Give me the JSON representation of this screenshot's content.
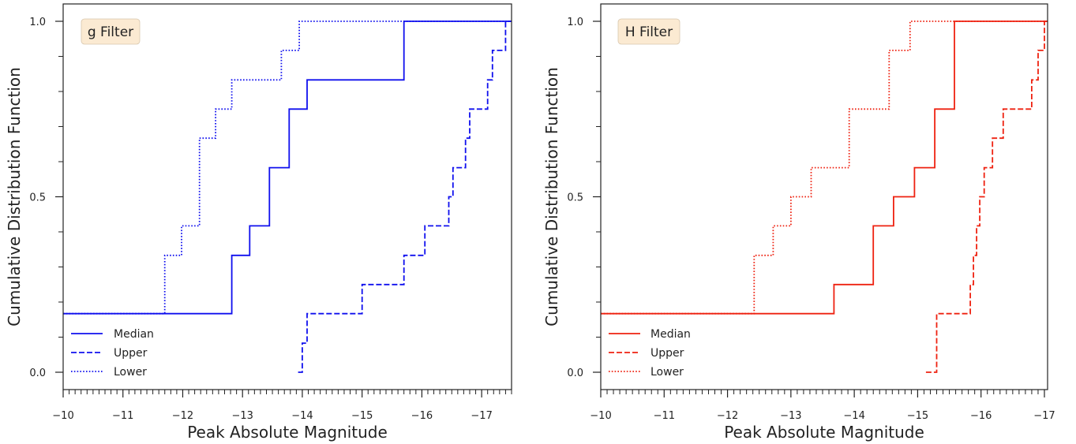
{
  "chart_data": [
    {
      "type": "line",
      "step": "post",
      "annotation": "g Filter",
      "xlabel": "Peak Absolute Magnitude",
      "ylabel": "Cumulative Distribution Function",
      "xlim": [
        -10,
        -17.5
      ],
      "ylim": [
        0,
        1
      ],
      "x_ticks": [
        -10,
        -11,
        -12,
        -13,
        -14,
        -15,
        -16,
        -17
      ],
      "x_tick_labels": [
        "−10",
        "−11",
        "−12",
        "−13",
        "−14",
        "−15",
        "−16",
        "−17"
      ],
      "y_ticks": [
        0.0,
        0.5,
        1.0
      ],
      "y_tick_labels": [
        "0.0",
        "0.5",
        "1.0"
      ],
      "grid": false,
      "legend_position": "bottom-left",
      "colors": {
        "series": "#1010ee",
        "annotation_bg": "#fbead2"
      },
      "series": [
        {
          "name": "Median",
          "linestyle": "solid",
          "x": [
            -10.0,
            -12.82,
            -13.12,
            -13.45,
            -13.78,
            -14.08,
            -15.7,
            -17.5
          ],
          "y": [
            0.167,
            0.333,
            0.417,
            0.583,
            0.75,
            0.833,
            1.0,
            1.0
          ]
        },
        {
          "name": "Upper",
          "linestyle": "dashed",
          "x": [
            -13.93,
            -14.0,
            -14.08,
            -15.0,
            -15.7,
            -16.05,
            -16.45,
            -16.52,
            -16.73,
            -16.8,
            -16.85,
            -17.1,
            -17.18,
            -17.22,
            -17.4,
            -17.5
          ],
          "y": [
            0.0,
            0.083,
            0.167,
            0.25,
            0.333,
            0.417,
            0.5,
            0.583,
            0.667,
            0.75,
            0.75,
            0.833,
            0.917,
            0.917,
            1.0,
            1.0
          ]
        },
        {
          "name": "Lower",
          "linestyle": "dotted",
          "x": [
            -10.0,
            -11.7,
            -11.98,
            -12.28,
            -12.55,
            -12.82,
            -13.65,
            -13.95,
            -17.5
          ],
          "y": [
            0.167,
            0.333,
            0.417,
            0.667,
            0.75,
            0.833,
            0.917,
            1.0,
            1.0
          ]
        }
      ]
    },
    {
      "type": "line",
      "step": "post",
      "annotation": "H Filter",
      "xlabel": "Peak Absolute Magnitude",
      "ylabel": "Cumulative Distribution Function",
      "xlim": [
        -10,
        -17.05
      ],
      "ylim": [
        0,
        1
      ],
      "x_ticks": [
        -10,
        -11,
        -12,
        -13,
        -14,
        -15,
        -16,
        -17
      ],
      "x_tick_labels": [
        "−10",
        "−11",
        "−12",
        "−13",
        "−14",
        "−15",
        "−16",
        "−17"
      ],
      "y_ticks": [
        0.0,
        0.5,
        1.0
      ],
      "y_tick_labels": [
        "0.0",
        "0.5",
        "1.0"
      ],
      "grid": false,
      "legend_position": "bottom-left",
      "colors": {
        "series": "#ee2211",
        "annotation_bg": "#fbead2"
      },
      "series": [
        {
          "name": "Median",
          "linestyle": "solid",
          "x": [
            -10.0,
            -13.68,
            -14.3,
            -14.62,
            -14.95,
            -15.27,
            -15.58,
            -17.05
          ],
          "y": [
            0.167,
            0.25,
            0.417,
            0.5,
            0.583,
            0.75,
            1.0,
            1.0
          ]
        },
        {
          "name": "Upper",
          "linestyle": "dashed",
          "x": [
            -15.13,
            -15.3,
            -15.83,
            -15.88,
            -15.93,
            -15.98,
            -16.05,
            -16.12,
            -16.18,
            -16.35,
            -16.4,
            -16.8,
            -16.9,
            -17.0,
            -17.05
          ],
          "y": [
            0.0,
            0.167,
            0.25,
            0.333,
            0.417,
            0.5,
            0.583,
            0.583,
            0.667,
            0.75,
            0.75,
            0.833,
            0.917,
            1.0,
            1.0
          ]
        },
        {
          "name": "Lower",
          "linestyle": "dotted",
          "x": [
            -10.0,
            -12.42,
            -12.72,
            -13.0,
            -13.32,
            -13.92,
            -14.55,
            -14.88,
            -17.05
          ],
          "y": [
            0.167,
            0.333,
            0.417,
            0.5,
            0.583,
            0.75,
            0.917,
            1.0,
            1.0
          ]
        }
      ]
    }
  ]
}
